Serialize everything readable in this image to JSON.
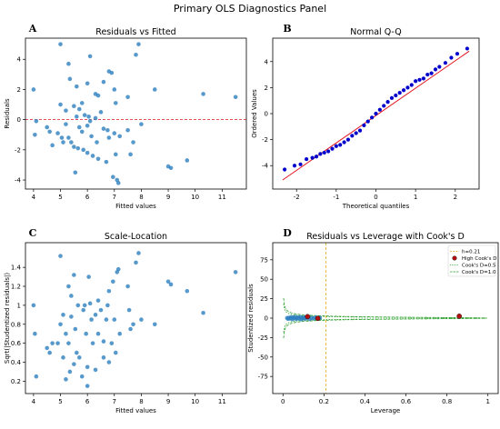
{
  "suptitle": "Primary OLS Diagnostics Panel",
  "colors": {
    "point": "#2e7fbf",
    "qq_point": "#0000cc",
    "refline": "#e0141e",
    "leverage_line": "#e6a817",
    "high_cooks": "#b50e0e",
    "cooks_green": "#2ca02c"
  },
  "chart_data": [
    {
      "letter": "A",
      "type": "scatter",
      "title": "Residuals vs Fitted",
      "xlabel": "Fitted values",
      "ylabel": "Residuals",
      "xlim": [
        3.7,
        11.9
      ],
      "ylim": [
        -4.6,
        5.4
      ],
      "xticks": [
        4,
        5,
        6,
        7,
        8,
        9,
        10,
        11
      ],
      "yticks": [
        -4,
        -2,
        0,
        2,
        4
      ],
      "hline": 0,
      "points": [
        [
          4.0,
          2.0
        ],
        [
          4.1,
          -0.1
        ],
        [
          4.05,
          -1.0
        ],
        [
          4.5,
          -0.5
        ],
        [
          4.6,
          -0.8
        ],
        [
          4.7,
          -1.7
        ],
        [
          4.9,
          -0.9
        ],
        [
          5.0,
          5.0
        ],
        [
          5.0,
          1.0
        ],
        [
          5.05,
          -1.2
        ],
        [
          5.1,
          -1.5
        ],
        [
          5.2,
          0.6
        ],
        [
          5.2,
          -0.3
        ],
        [
          5.3,
          3.7
        ],
        [
          5.3,
          -1.2
        ],
        [
          5.35,
          2.7
        ],
        [
          5.4,
          -1.5
        ],
        [
          5.5,
          0.9
        ],
        [
          5.5,
          -1.8
        ],
        [
          5.55,
          -3.5
        ],
        [
          5.6,
          2.2
        ],
        [
          5.6,
          0.2
        ],
        [
          5.65,
          -1.9
        ],
        [
          5.7,
          0.7
        ],
        [
          5.7,
          -0.5
        ],
        [
          5.8,
          1.1
        ],
        [
          5.8,
          -0.8
        ],
        [
          5.85,
          -2.0
        ],
        [
          5.9,
          0.3
        ],
        [
          6.0,
          2.4
        ],
        [
          6.0,
          -0.4
        ],
        [
          6.0,
          -2.2
        ],
        [
          6.05,
          0.2
        ],
        [
          6.1,
          4.2
        ],
        [
          6.1,
          -0.1
        ],
        [
          6.15,
          -1.1
        ],
        [
          6.2,
          -2.4
        ],
        [
          6.3,
          1.7
        ],
        [
          6.3,
          0.1
        ],
        [
          6.35,
          -1.5
        ],
        [
          6.4,
          1.6
        ],
        [
          6.4,
          -2.6
        ],
        [
          6.5,
          0.5
        ],
        [
          6.6,
          2.5
        ],
        [
          6.6,
          -0.6
        ],
        [
          6.7,
          -2.8
        ],
        [
          6.75,
          -0.7
        ],
        [
          6.8,
          3.2
        ],
        [
          6.8,
          -1.2
        ],
        [
          6.9,
          3.1
        ],
        [
          6.95,
          -3.8
        ],
        [
          7.0,
          2.0
        ],
        [
          7.0,
          -0.9
        ],
        [
          7.05,
          1.1
        ],
        [
          7.05,
          -2.3
        ],
        [
          7.1,
          -4.0
        ],
        [
          7.15,
          -4.2
        ],
        [
          7.2,
          -1.1
        ],
        [
          7.5,
          1.5
        ],
        [
          7.5,
          -0.7
        ],
        [
          7.6,
          -2.3
        ],
        [
          7.7,
          -1.5
        ],
        [
          7.8,
          4.3
        ],
        [
          7.9,
          5.0
        ],
        [
          8.0,
          -0.3
        ],
        [
          8.5,
          2.0
        ],
        [
          9.0,
          -3.1
        ],
        [
          9.1,
          -3.2
        ],
        [
          9.7,
          -2.7
        ],
        [
          10.3,
          1.7
        ],
        [
          11.5,
          1.5
        ]
      ]
    },
    {
      "letter": "B",
      "type": "scatter",
      "title": "Normal Q-Q",
      "xlabel": "Theoretical quantiles",
      "ylabel": "Ordered Values",
      "xlim": [
        -2.6,
        2.6
      ],
      "ylim": [
        -5.8,
        5.8
      ],
      "xticks": [
        -2,
        -1,
        0,
        1,
        2
      ],
      "yticks": [
        -4,
        -2,
        0,
        2,
        4
      ],
      "fit_line": [
        [
          -2.35,
          -5.1
        ],
        [
          2.35,
          4.8
        ]
      ],
      "points": [
        [
          -2.3,
          -4.3
        ],
        [
          -2.05,
          -4.0
        ],
        [
          -1.9,
          -3.9
        ],
        [
          -1.75,
          -3.5
        ],
        [
          -1.6,
          -3.4
        ],
        [
          -1.5,
          -3.3
        ],
        [
          -1.4,
          -3.1
        ],
        [
          -1.3,
          -3.0
        ],
        [
          -1.2,
          -2.9
        ],
        [
          -1.1,
          -2.7
        ],
        [
          -1.0,
          -2.5
        ],
        [
          -0.9,
          -2.4
        ],
        [
          -0.8,
          -2.2
        ],
        [
          -0.7,
          -2.0
        ],
        [
          -0.6,
          -1.7
        ],
        [
          -0.5,
          -1.5
        ],
        [
          -0.4,
          -1.3
        ],
        [
          -0.3,
          -0.9
        ],
        [
          -0.2,
          -0.6
        ],
        [
          -0.1,
          -0.3
        ],
        [
          0.0,
          0.0
        ],
        [
          0.1,
          0.3
        ],
        [
          0.2,
          0.6
        ],
        [
          0.3,
          0.9
        ],
        [
          0.4,
          1.2
        ],
        [
          0.5,
          1.4
        ],
        [
          0.6,
          1.6
        ],
        [
          0.7,
          1.8
        ],
        [
          0.8,
          2.0
        ],
        [
          0.9,
          2.2
        ],
        [
          1.0,
          2.5
        ],
        [
          1.1,
          2.6
        ],
        [
          1.2,
          2.7
        ],
        [
          1.3,
          3.0
        ],
        [
          1.4,
          3.1
        ],
        [
          1.5,
          3.4
        ],
        [
          1.6,
          3.6
        ],
        [
          1.75,
          3.9
        ],
        [
          1.9,
          4.3
        ],
        [
          2.05,
          4.6
        ],
        [
          2.3,
          5.0
        ]
      ]
    },
    {
      "letter": "C",
      "type": "scatter",
      "title": "Scale-Location",
      "xlabel": "Fitted values",
      "ylabel": "Sqrt(|Studentized residuals|)",
      "xlim": [
        3.7,
        11.9
      ],
      "ylim": [
        0.07,
        1.66
      ],
      "xticks": [
        4,
        5,
        6,
        7,
        8,
        9,
        10,
        11
      ],
      "yticks": [
        0.2,
        0.4,
        0.6,
        0.8,
        1.0,
        1.2,
        1.4
      ],
      "points": [
        [
          4.0,
          1.0
        ],
        [
          4.05,
          0.7
        ],
        [
          4.1,
          0.25
        ],
        [
          4.5,
          0.55
        ],
        [
          4.6,
          0.5
        ],
        [
          4.7,
          0.6
        ],
        [
          4.9,
          0.6
        ],
        [
          5.0,
          1.52
        ],
        [
          5.0,
          0.8
        ],
        [
          5.1,
          0.9
        ],
        [
          5.1,
          0.45
        ],
        [
          5.2,
          0.22
        ],
        [
          5.2,
          0.7
        ],
        [
          5.3,
          1.2
        ],
        [
          5.3,
          0.6
        ],
        [
          5.35,
          0.3
        ],
        [
          5.4,
          1.1
        ],
        [
          5.4,
          0.88
        ],
        [
          5.5,
          1.32
        ],
        [
          5.5,
          0.38
        ],
        [
          5.55,
          0.75
        ],
        [
          5.6,
          0.5
        ],
        [
          5.65,
          1.0
        ],
        [
          5.7,
          0.45
        ],
        [
          5.8,
          0.25
        ],
        [
          5.85,
          0.95
        ],
        [
          5.9,
          1.0
        ],
        [
          5.95,
          0.7
        ],
        [
          6.0,
          0.35
        ],
        [
          6.0,
          0.15
        ],
        [
          6.05,
          1.3
        ],
        [
          6.1,
          1.02
        ],
        [
          6.15,
          0.85
        ],
        [
          6.2,
          0.6
        ],
        [
          6.3,
          0.9
        ],
        [
          6.3,
          0.32
        ],
        [
          6.4,
          1.05
        ],
        [
          6.4,
          0.7
        ],
        [
          6.5,
          0.95
        ],
        [
          6.6,
          0.62
        ],
        [
          6.6,
          0.45
        ],
        [
          6.7,
          0.85
        ],
        [
          6.75,
          1.0
        ],
        [
          6.8,
          1.15
        ],
        [
          6.8,
          0.4
        ],
        [
          6.9,
          0.6
        ],
        [
          6.95,
          1.25
        ],
        [
          7.0,
          0.85
        ],
        [
          7.05,
          0.5
        ],
        [
          7.1,
          1.35
        ],
        [
          7.15,
          1.38
        ],
        [
          7.2,
          0.7
        ],
        [
          7.5,
          1.2
        ],
        [
          7.55,
          0.95
        ],
        [
          7.6,
          0.75
        ],
        [
          7.7,
          0.8
        ],
        [
          7.8,
          1.45
        ],
        [
          7.9,
          1.55
        ],
        [
          8.0,
          0.85
        ],
        [
          8.5,
          0.8
        ],
        [
          9.0,
          1.25
        ],
        [
          9.1,
          1.22
        ],
        [
          9.7,
          1.15
        ],
        [
          10.3,
          0.92
        ],
        [
          11.5,
          1.35
        ]
      ]
    },
    {
      "letter": "D",
      "type": "scatter",
      "title": "Residuals vs Leverage with Cook's D",
      "xlabel": "Leverage",
      "ylabel": "Studentized residuals",
      "xlim": [
        -0.05,
        1.05
      ],
      "ylim": [
        -97,
        97
      ],
      "xticks": [
        0.0,
        0.2,
        0.4,
        0.6,
        0.8,
        1.0
      ],
      "yticks": [
        -75,
        -50,
        -25,
        0,
        25,
        50,
        75
      ],
      "vline": 0.21,
      "legend_position": "top-right",
      "legend": [
        "h=0.21",
        "High Cook's D",
        "Cook's D=0.5",
        "Cook's D=1.0"
      ],
      "cooks_levels": [
        0.5,
        1.0
      ],
      "cooks_p": 2,
      "points": [
        [
          0.02,
          0.2
        ],
        [
          0.025,
          -1.0
        ],
        [
          0.03,
          0.5
        ],
        [
          0.035,
          -0.5
        ],
        [
          0.04,
          1.2
        ],
        [
          0.045,
          -1.4
        ],
        [
          0.05,
          0.8
        ],
        [
          0.055,
          -0.3
        ],
        [
          0.06,
          1.5
        ],
        [
          0.065,
          -1.1
        ],
        [
          0.07,
          0.1
        ],
        [
          0.075,
          0.9
        ],
        [
          0.08,
          -0.8
        ],
        [
          0.085,
          1.3
        ],
        [
          0.09,
          -1.6
        ],
        [
          0.095,
          0.4
        ],
        [
          0.1,
          -0.2
        ],
        [
          0.105,
          1.0
        ],
        [
          0.11,
          -0.7
        ],
        [
          0.115,
          0.6
        ],
        [
          0.12,
          1.8
        ],
        [
          0.13,
          -1.2
        ],
        [
          0.14,
          0.3
        ],
        [
          0.15,
          -0.5
        ],
        [
          0.16,
          0.9
        ],
        [
          0.17,
          -0.4
        ],
        [
          0.18,
          0.2
        ]
      ],
      "high_points": [
        [
          0.12,
          2.0
        ],
        [
          0.17,
          -0.3
        ],
        [
          0.86,
          2.5
        ]
      ]
    }
  ]
}
